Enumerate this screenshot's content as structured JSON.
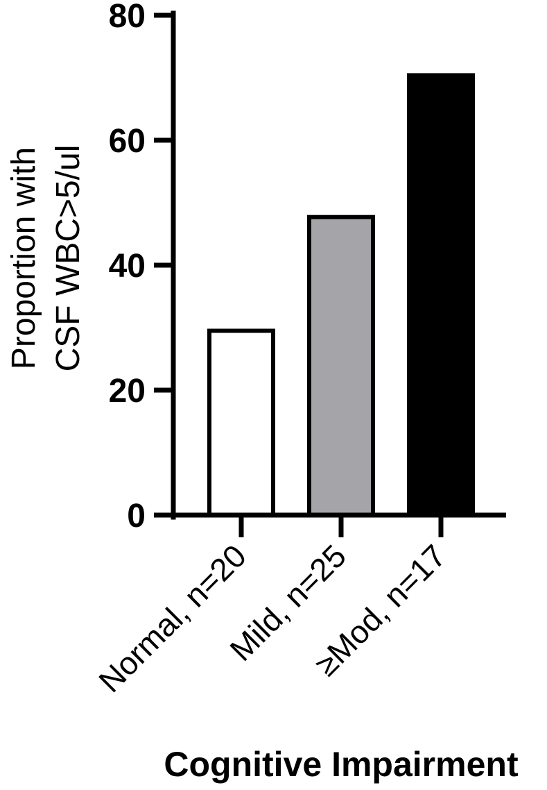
{
  "chart_data": {
    "type": "bar",
    "categories": [
      "Normal, n=20",
      "Mild, n=25",
      "≥Mod, n=17"
    ],
    "values": [
      29.5,
      47.7,
      70.4
    ],
    "bar_colors": [
      "#ffffff",
      "#a5a4a9",
      "#000000"
    ],
    "ylabel_lines": [
      "Proportion with",
      "CSF WBC>5/ul"
    ],
    "xlabel": "Cognitive Impairment",
    "ylim": [
      0,
      80
    ],
    "yticks": [
      0,
      20,
      40,
      60,
      80
    ],
    "grid": false,
    "legend": "none"
  }
}
